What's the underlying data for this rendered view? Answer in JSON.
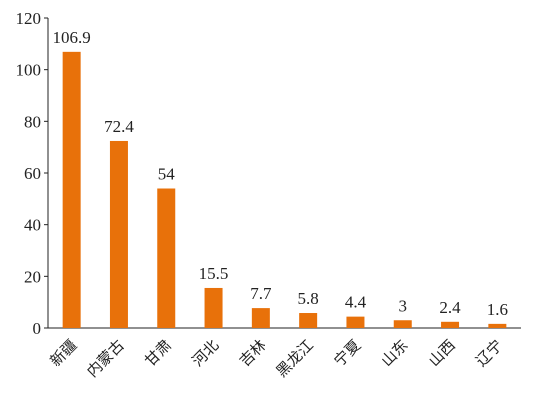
{
  "chart_data": {
    "type": "bar",
    "title": "",
    "xlabel": "",
    "ylabel": "",
    "categories": [
      "新疆",
      "内蒙古",
      "甘肃",
      "河北",
      "吉林",
      "黑龙江",
      "宁夏",
      "山东",
      "山西",
      "辽宁"
    ],
    "values": [
      106.9,
      72.4,
      54,
      15.5,
      7.7,
      5.8,
      4.4,
      3,
      2.4,
      1.6
    ],
    "value_labels": [
      "106.9",
      "72.4",
      "54",
      "15.5",
      "7.7",
      "5.8",
      "4.4",
      "3",
      "2.4",
      "1.6"
    ],
    "ylim": [
      0,
      120
    ],
    "yticks": [
      0,
      20,
      40,
      60,
      80,
      100,
      120
    ],
    "ytick_labels": [
      "0",
      "20",
      "40",
      "60",
      "80",
      "100",
      "120"
    ],
    "grid": false,
    "legend": "none",
    "colors": {
      "bar": "#E8710A",
      "axis": "#222222",
      "text": "#222222"
    }
  }
}
